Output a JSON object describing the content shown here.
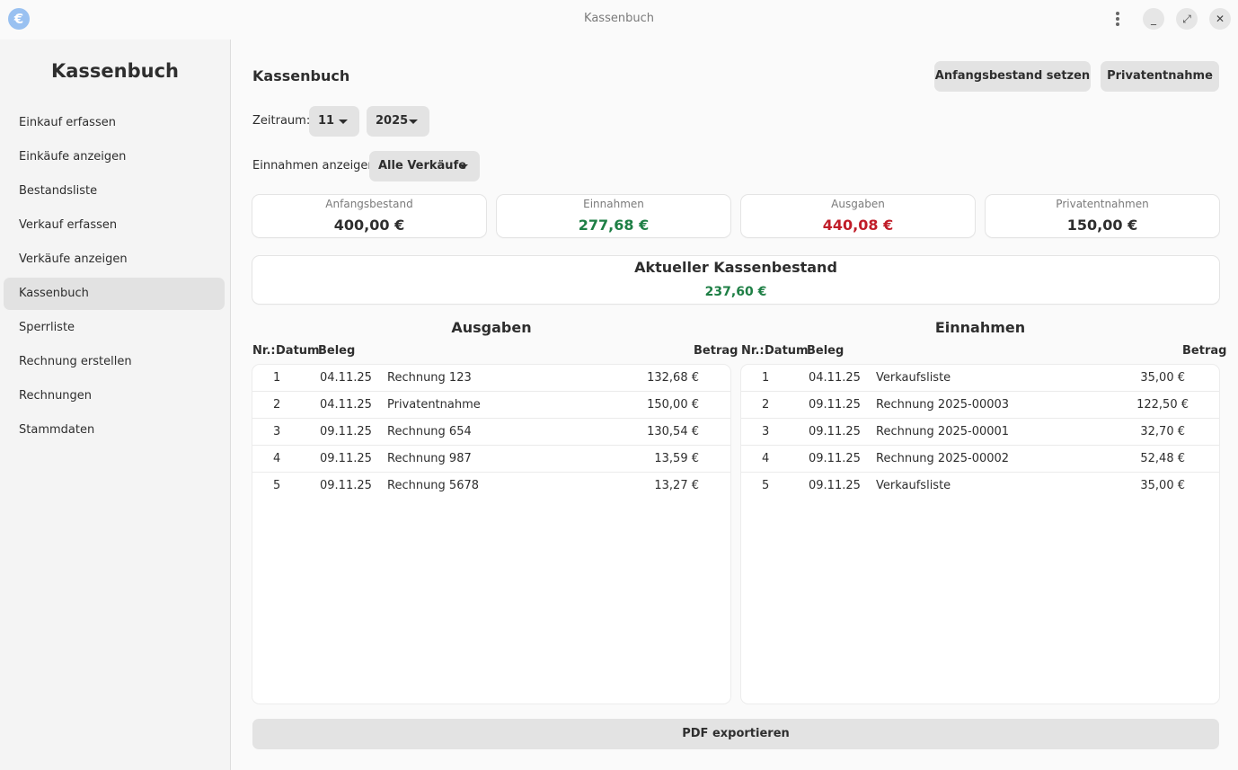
{
  "window": {
    "title": "Kassenbuch",
    "app_icon": "€"
  },
  "sidebar": {
    "title": "Kassenbuch",
    "items": [
      {
        "label": "Einkauf erfassen"
      },
      {
        "label": "Einkäufe anzeigen"
      },
      {
        "label": "Bestandsliste"
      },
      {
        "label": "Verkauf erfassen"
      },
      {
        "label": "Verkäufe anzeigen"
      },
      {
        "label": "Kassenbuch",
        "active": true
      },
      {
        "label": "Sperrliste"
      },
      {
        "label": "Rechnung erstellen"
      },
      {
        "label": "Rechnungen"
      },
      {
        "label": "Stammdaten"
      }
    ]
  },
  "main": {
    "title": "Kassenbuch",
    "buttons": {
      "opening_balance": "Anfangsbestand setzen",
      "private_withdrawal": "Privatentnahme"
    },
    "period_label": "Zeitraum:",
    "month": "11",
    "year": "2025",
    "income_filter_label": "Einnahmen anzeigen:",
    "income_filter_value": "Alle Verkäufe",
    "cards": [
      {
        "title": "Anfangsbestand",
        "value": "400,00 €",
        "color": "#2e2e2e"
      },
      {
        "title": "Einnahmen",
        "value": "277,68 €",
        "color": "#1e7f45"
      },
      {
        "title": "Ausgaben",
        "value": "440,08 €",
        "color": "#c01c28"
      },
      {
        "title": "Privatentnahmen",
        "value": "150,00 €",
        "color": "#2e2e2e"
      }
    ],
    "balance": {
      "title": "Aktueller Kassenbestand",
      "value": "237,60 €",
      "color": "#1e7f45"
    },
    "columns": {
      "nr": "Nr.:",
      "date": "Datum",
      "receipt": "Beleg",
      "amount": "Betrag"
    },
    "expenses": {
      "title": "Ausgaben",
      "rows": [
        {
          "nr": "1",
          "date": "04.11.25",
          "receipt": "Rechnung 123",
          "amount": "132,68 €"
        },
        {
          "nr": "2",
          "date": "04.11.25",
          "receipt": "Privatentnahme",
          "amount": "150,00 €"
        },
        {
          "nr": "3",
          "date": "09.11.25",
          "receipt": "Rechnung 654",
          "amount": "130,54 €"
        },
        {
          "nr": "4",
          "date": "09.11.25",
          "receipt": "Rechnung 987",
          "amount": "13,59 €"
        },
        {
          "nr": "5",
          "date": "09.11.25",
          "receipt": "Rechnung 5678",
          "amount": "13,27 €"
        }
      ]
    },
    "income": {
      "title": "Einnahmen",
      "rows": [
        {
          "nr": "1",
          "date": "04.11.25",
          "receipt": "Verkaufsliste",
          "amount": "35,00 €"
        },
        {
          "nr": "2",
          "date": "09.11.25",
          "receipt": "Rechnung 2025-00003",
          "amount": "122,50 €"
        },
        {
          "nr": "3",
          "date": "09.11.25",
          "receipt": "Rechnung 2025-00001",
          "amount": "32,70 €"
        },
        {
          "nr": "4",
          "date": "09.11.25",
          "receipt": "Rechnung 2025-00002",
          "amount": "52,48 €"
        },
        {
          "nr": "5",
          "date": "09.11.25",
          "receipt": "Verkaufsliste",
          "amount": "35,00 €"
        }
      ]
    },
    "export_button": "PDF exportieren"
  }
}
